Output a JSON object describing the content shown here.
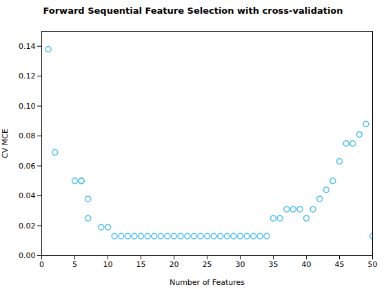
{
  "chart_data": {
    "type": "scatter",
    "title": "Forward Sequential Feature Selection with cross-validation",
    "xlabel": "Number of Features",
    "ylabel": "CV MCE",
    "x": [
      1,
      2,
      5,
      6,
      7,
      6,
      7,
      9,
      10,
      11,
      12,
      13,
      14,
      15,
      16,
      17,
      18,
      19,
      20,
      21,
      22,
      23,
      24,
      25,
      26,
      27,
      28,
      29,
      30,
      31,
      32,
      33,
      34,
      35,
      36,
      37,
      38,
      39,
      40,
      41,
      42,
      43,
      44,
      45,
      46,
      47,
      48,
      49,
      50
    ],
    "values": [
      0.138,
      0.069,
      0.05,
      0.05,
      0.038,
      0.05,
      0.025,
      0.019,
      0.019,
      0.013,
      0.013,
      0.013,
      0.013,
      0.013,
      0.013,
      0.013,
      0.013,
      0.013,
      0.013,
      0.013,
      0.013,
      0.013,
      0.013,
      0.013,
      0.013,
      0.013,
      0.013,
      0.013,
      0.013,
      0.013,
      0.013,
      0.013,
      0.013,
      0.025,
      0.025,
      0.031,
      0.031,
      0.031,
      0.025,
      0.031,
      0.038,
      0.044,
      0.05,
      0.063,
      0.075,
      0.075,
      0.081,
      0.088,
      0.013
    ],
    "color": "#4DBEEE",
    "marker": "circle",
    "xlim": [
      0,
      50
    ],
    "ylim": [
      0,
      0.15
    ],
    "xticks": [
      0,
      5,
      10,
      15,
      20,
      25,
      30,
      35,
      40,
      45,
      50
    ],
    "yticks": [
      {
        "value": 0,
        "label": "0.00"
      },
      0.02,
      0.04,
      0.06,
      0.08,
      {
        "value": 0.1,
        "label": "0.10"
      },
      0.12,
      0.14
    ],
    "grid": false
  }
}
